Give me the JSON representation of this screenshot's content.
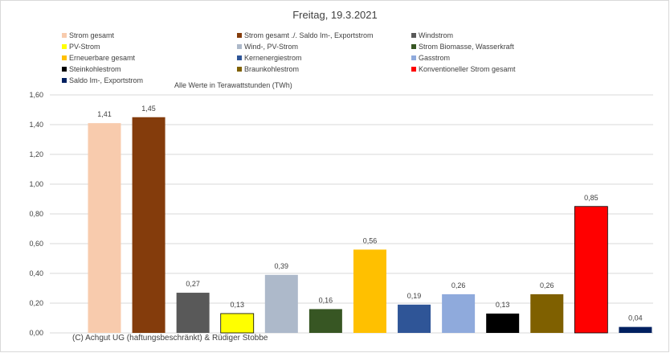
{
  "chart_data": {
    "type": "bar",
    "title": "Freitag, 19.3.2021",
    "ylabel": "",
    "xlabel": "",
    "note": "Alle Werte in Terawattstunden (TWh)",
    "ylim": [
      0,
      1.6
    ],
    "yticks": [
      "0,00",
      "0,20",
      "0,40",
      "0,60",
      "0,80",
      "1,00",
      "1,20",
      "1,40",
      "1,60"
    ],
    "grid": true,
    "legend_position": "top",
    "categories": [
      "Strom gesamt",
      "Strom gesamt ./. Saldo Im-, Exportstrom",
      "Windstrom",
      "PV-Strom",
      "Wind-, PV-Strom",
      "Strom Biomasse, Wasserkraft",
      "Erneuerbare gesamt",
      "Kernenergiestrom",
      "Gasstrom",
      "Steinkohlestrom",
      "Braunkohlestrom",
      "Konventioneller Strom gesamt",
      "Saldo Im-, Exportstrom"
    ],
    "values": [
      1.41,
      1.45,
      0.27,
      0.13,
      0.39,
      0.16,
      0.56,
      0.19,
      0.26,
      0.13,
      0.26,
      0.85,
      0.04
    ],
    "labels": [
      "1,41",
      "1,45",
      "0,27",
      "0,13",
      "0,39",
      "0,16",
      "0,56",
      "0,19",
      "0,26",
      "0,13",
      "0,26",
      "0,85",
      "0,04"
    ],
    "colors": [
      "#f8cbad",
      "#843c0c",
      "#595959",
      "#ffff00",
      "#adb9ca",
      "#375623",
      "#ffc000",
      "#2f5597",
      "#8faadc",
      "#000000",
      "#7f6000",
      "#ff0000",
      "#002060"
    ]
  },
  "footer": {
    "copyright": "(C) Achgut UG (haftungsbeschränkt) & Rüdiger Stobbe"
  }
}
